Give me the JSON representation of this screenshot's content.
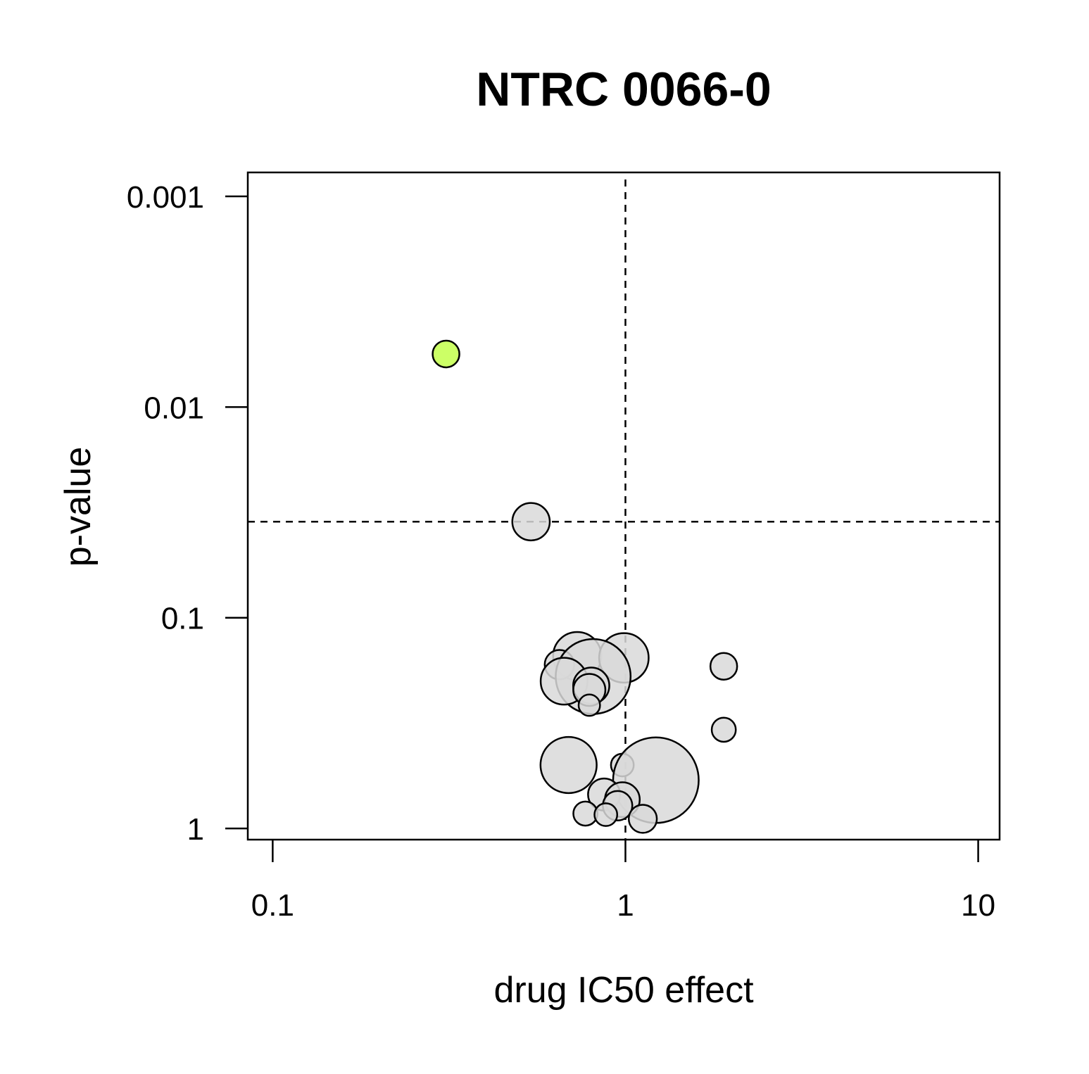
{
  "chart_data": {
    "type": "scatter",
    "title": "NTRC 0066-0",
    "xlabel": "drug IC50 effect",
    "ylabel": "p-value",
    "x_scale": "log",
    "y_scale": "log",
    "y_reversed": true,
    "xlim": [
      0.085,
      11.5
    ],
    "ylim": [
      1.13,
      0.00077
    ],
    "x_ticks": [
      {
        "value": 0.1,
        "label": "0.1"
      },
      {
        "value": 1,
        "label": "1"
      },
      {
        "value": 10,
        "label": "10"
      }
    ],
    "y_ticks": [
      {
        "value": 0.001,
        "label": "0.001"
      },
      {
        "value": 0.01,
        "label": "0.01"
      },
      {
        "value": 0.1,
        "label": "0.1"
      },
      {
        "value": 1,
        "label": "1"
      }
    ],
    "reference_lines": {
      "x": 1,
      "y": 0.035
    },
    "colors": {
      "default_point": "#d9d9d9",
      "highlight_point": "#ccff66",
      "outline": "#000000"
    },
    "points": [
      {
        "x": 0.31,
        "y": 0.0056,
        "size": 1.0,
        "highlight": true
      },
      {
        "x": 0.54,
        "y": 0.035,
        "size": 1.4
      },
      {
        "x": 0.73,
        "y": 0.152,
        "size": 1.8
      },
      {
        "x": 0.99,
        "y": 0.155,
        "size": 1.85
      },
      {
        "x": 0.65,
        "y": 0.167,
        "size": 1.1
      },
      {
        "x": 0.81,
        "y": 0.19,
        "size": 2.8
      },
      {
        "x": 0.67,
        "y": 0.2,
        "size": 1.75
      },
      {
        "x": 0.8,
        "y": 0.21,
        "size": 1.35
      },
      {
        "x": 0.79,
        "y": 0.22,
        "size": 1.2
      },
      {
        "x": 0.79,
        "y": 0.26,
        "size": 0.8
      },
      {
        "x": 1.9,
        "y": 0.17,
        "size": 1.0
      },
      {
        "x": 1.9,
        "y": 0.34,
        "size": 0.9
      },
      {
        "x": 0.69,
        "y": 0.5,
        "size": 2.1
      },
      {
        "x": 0.98,
        "y": 0.5,
        "size": 0.85
      },
      {
        "x": 1.22,
        "y": 0.59,
        "size": 3.2
      },
      {
        "x": 0.87,
        "y": 0.69,
        "size": 1.2
      },
      {
        "x": 0.98,
        "y": 0.73,
        "size": 1.3
      },
      {
        "x": 0.95,
        "y": 0.78,
        "size": 1.1
      },
      {
        "x": 0.77,
        "y": 0.85,
        "size": 0.9
      },
      {
        "x": 0.88,
        "y": 0.86,
        "size": 0.85
      },
      {
        "x": 1.12,
        "y": 0.9,
        "size": 1.05
      }
    ]
  }
}
